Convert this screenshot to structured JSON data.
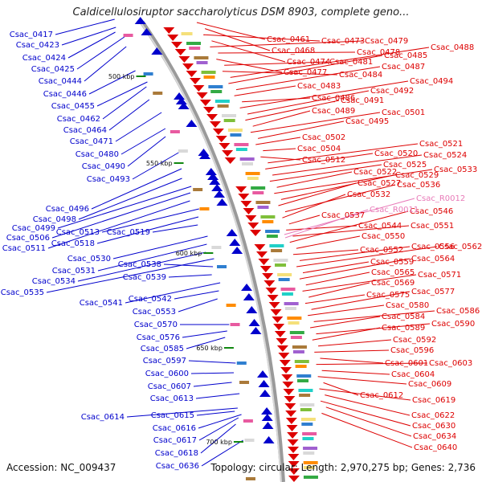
{
  "header": {
    "title": "Caldicellulosiruptor saccharolyticus DSM 8903, complete geno..."
  },
  "footer": {
    "accession": "Accession: NC_009437",
    "topology": "Topology: circular; Length: 2,970,275 bp; Genes: 2,736"
  },
  "colors": {
    "background": "#ffffff",
    "backbone": "#9a9a9a",
    "forward_strand": "#0000cc",
    "reverse_strand": "#dd0000",
    "rna_gene": "#e87ab8",
    "tick": "#118811"
  },
  "ticks": [
    "500 kbp",
    "550 kbp",
    "600 kbp",
    "650 kbp",
    "700 kbp"
  ],
  "forward_genes": [
    "Csac_0417",
    "Csac_0423",
    "Csac_0424",
    "Csac_0425",
    "Csac_0444",
    "Csac_0446",
    "Csac_0455",
    "Csac_0462",
    "Csac_0464",
    "Csac_0471",
    "Csac_0480",
    "Csac_0490",
    "Csac_0493",
    "Csac_0496",
    "Csac_0498",
    "Csac_0499",
    "Csac_0506",
    "Csac_0511",
    "Csac_0513",
    "Csac_0518",
    "Csac_0519",
    "Csac_0530",
    "Csac_0531",
    "Csac_0534",
    "Csac_0535",
    "Csac_0538",
    "Csac_0539",
    "Csac_0541",
    "Csac_0542",
    "Csac_0553",
    "Csac_0570",
    "Csac_0576",
    "Csac_0585",
    "Csac_0597",
    "Csac_0600",
    "Csac_0607",
    "Csac_0613",
    "Csac_0614",
    "Csac_0615",
    "Csac_0616",
    "Csac_0617",
    "Csac_0618",
    "Csac_0636"
  ],
  "reverse_genes": [
    "Csac_0461",
    "Csac_0468",
    "Csac_0473",
    "Csac_0474",
    "Csac_0479",
    "Csac_0478",
    "Csac_0477",
    "Csac_0481",
    "Csac_0484",
    "Csac_0488",
    "Csac_0485",
    "Csac_0487",
    "Csac_0483",
    "Csac_0486",
    "Csac_0494",
    "Csac_0492",
    "Csac_0491",
    "Csac_0489",
    "Csac_0501",
    "Csac_0495",
    "Csac_0502",
    "Csac_0504",
    "Csac_0512",
    "Csac_0521",
    "Csac_0520",
    "Csac_0524",
    "Csac_0525",
    "Csac_0522",
    "Csac_0533",
    "Csac_0529",
    "Csac_0527",
    "Csac_0536",
    "Csac_0532",
    "Csac_0537",
    "Csac_0544",
    "Csac_0551",
    "Csac_0546",
    "Csac_0550",
    "Csac_0552",
    "Csac_0556",
    "Csac_0562",
    "Csac_0559",
    "Csac_0564",
    "Csac_0565",
    "Csac_0571",
    "Csac_0569",
    "Csac_0575",
    "Csac_0577",
    "Csac_0580",
    "Csac_0586",
    "Csac_0584",
    "Csac_0590",
    "Csac_0589",
    "Csac_0592",
    "Csac_0596",
    "Csac_0601",
    "Csac_0603",
    "Csac_0604",
    "Csac_0609",
    "Csac_0612",
    "Csac_0619",
    "Csac_0622",
    "Csac_0630",
    "Csac_0634",
    "Csac_0640"
  ],
  "rna_genes": [
    "Csac_R0012",
    "Csac_R0011"
  ]
}
